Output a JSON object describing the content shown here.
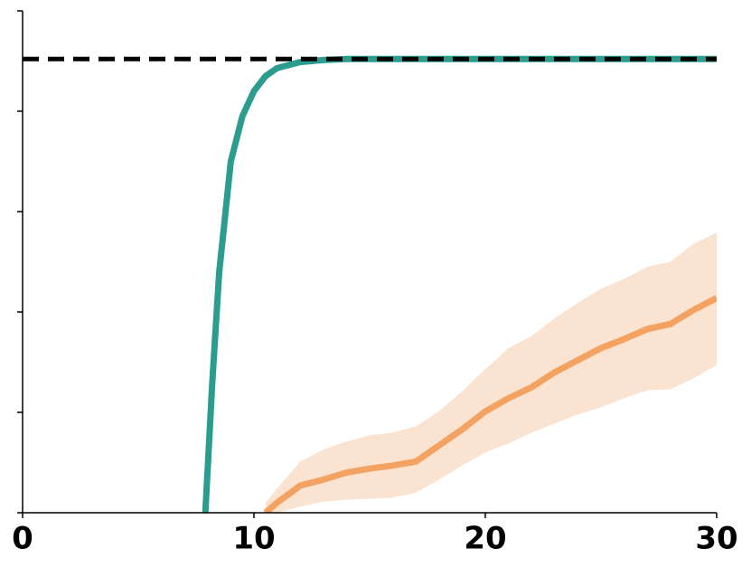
{
  "chart_data": {
    "type": "line",
    "xlim": [
      0,
      30
    ],
    "xticks": [
      0,
      10,
      20,
      30
    ],
    "ylim": [
      0,
      5
    ],
    "yticks": [
      0,
      1,
      2,
      3,
      4,
      5
    ],
    "ytick_labels": false,
    "hline": {
      "value": 4.52,
      "color": "#000000",
      "dashed": true
    },
    "series": [
      {
        "color": "#2a9d8f",
        "x": [
          7.9,
          8.2,
          8.5,
          9,
          9.5,
          10,
          10.5,
          11,
          12,
          13,
          14,
          30
        ],
        "values": [
          0,
          1.3,
          2.4,
          3.5,
          3.95,
          4.2,
          4.35,
          4.43,
          4.49,
          4.51,
          4.52,
          4.52
        ]
      },
      {
        "color": "#f4a261",
        "band_color": "#fae3d0",
        "x": [
          10.5,
          11,
          12,
          13,
          14,
          15,
          16,
          17,
          18,
          19,
          20,
          21,
          22,
          23,
          24,
          25,
          26,
          27,
          28,
          29,
          30
        ],
        "values": [
          0,
          0.1,
          0.27,
          0.33,
          0.4,
          0.44,
          0.47,
          0.51,
          0.67,
          0.83,
          1.01,
          1.14,
          1.25,
          1.4,
          1.52,
          1.64,
          1.73,
          1.83,
          1.88,
          2.02,
          2.14
        ],
        "lower": [
          -0.2,
          0,
          0.06,
          0.11,
          0.13,
          0.14,
          0.15,
          0.2,
          0.33,
          0.47,
          0.6,
          0.69,
          0.8,
          0.89,
          0.98,
          1.05,
          1.14,
          1.22,
          1.23,
          1.34,
          1.47
        ],
        "upper": [
          0.1,
          0.24,
          0.51,
          0.63,
          0.71,
          0.77,
          0.8,
          0.86,
          1.01,
          1.21,
          1.43,
          1.64,
          1.76,
          1.94,
          2.09,
          2.23,
          2.33,
          2.45,
          2.5,
          2.68,
          2.79
        ]
      }
    ]
  }
}
